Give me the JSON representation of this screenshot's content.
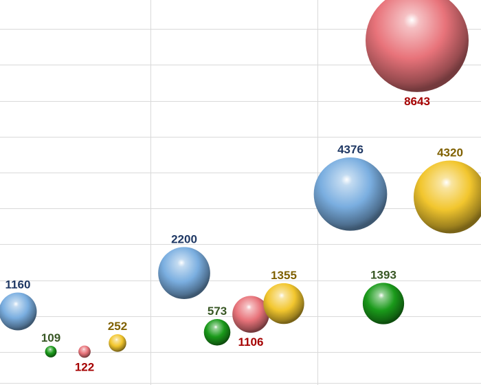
{
  "chart_data": {
    "type": "bubble",
    "series": [
      {
        "name": "",
        "color": "#7aaee0",
        "label_color": "#1f3864",
        "points": [
          {
            "group": 1,
            "y": 113,
            "value": "1160"
          },
          {
            "group": 2,
            "y": 220,
            "value": "2200"
          },
          {
            "group": 3,
            "y": 440,
            "value": "4376"
          }
        ]
      },
      {
        "name": "",
        "color": "#1a9a1a",
        "label_color": "#375623",
        "points": [
          {
            "group": 1,
            "y": 1,
            "value": "109"
          },
          {
            "group": 2,
            "y": 55,
            "value": "573"
          },
          {
            "group": 3,
            "y": 135,
            "value": "1393"
          }
        ]
      },
      {
        "name": "",
        "color": "#e8737a",
        "label_color": "#a50000",
        "points": [
          {
            "group": 1,
            "y": 1,
            "value": "122"
          },
          {
            "group": 2,
            "y": 105,
            "value": "1106"
          },
          {
            "group": 3,
            "y": 868,
            "value": "8643"
          }
        ]
      },
      {
        "name": "",
        "color": "#f2c62e",
        "label_color": "#7f6000",
        "points": [
          {
            "group": 1,
            "y": 25,
            "value": "252"
          },
          {
            "group": 2,
            "y": 135,
            "value": "1355"
          },
          {
            "group": 3,
            "y": 432,
            "value": "4320"
          }
        ]
      }
    ],
    "label_position": {
      "1160": "top",
      "109": "top",
      "122": "bottom",
      "252": "top",
      "2200": "top",
      "573": "top",
      "1106": "bottom",
      "1355": "top",
      "4376": "top",
      "1393": "top",
      "8643": "bottom",
      "4320": "top"
    },
    "ylim": [
      0,
      1000
    ],
    "grid": true,
    "legend": "none"
  }
}
